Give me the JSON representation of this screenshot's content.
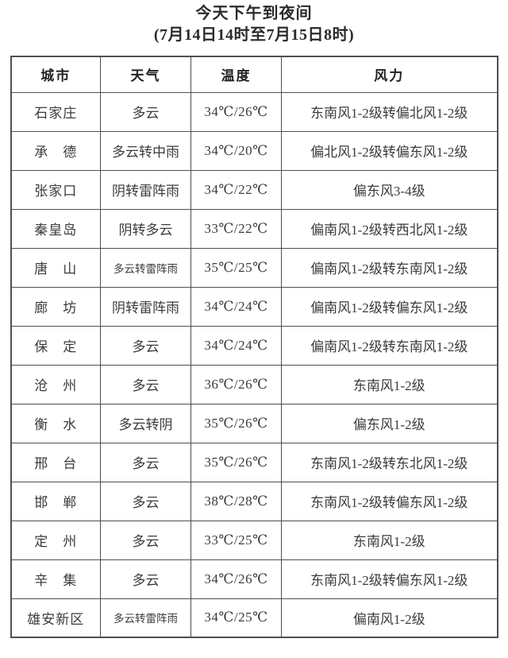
{
  "colors": {
    "background": "#ffffff",
    "text": "#3b3b40",
    "title": "#2b2b2b",
    "temperature": "#b5352c",
    "border": "#4f4f4f"
  },
  "chart_data": {
    "type": "table",
    "title": "今天下午到夜间",
    "subtitle": "(7月14日14时至7月15日8时)",
    "columns": [
      "城市",
      "天气",
      "温度",
      "风力"
    ],
    "rows": [
      [
        "石家庄",
        "多云",
        "34℃/26℃",
        "东南风1-2级转偏北风1-2级"
      ],
      [
        "承　德",
        "多云转中雨",
        "34℃/20℃",
        "偏北风1-2级转偏东风1-2级"
      ],
      [
        "张家口",
        "阴转雷阵雨",
        "34℃/22℃",
        "偏东风3-4级"
      ],
      [
        "秦皇岛",
        "阴转多云",
        "33℃/22℃",
        "偏南风1-2级转西北风1-2级"
      ],
      [
        "唐　山",
        "多云转雷阵雨",
        "35℃/25℃",
        "偏南风1-2级转东南风1-2级"
      ],
      [
        "廊　坊",
        "阴转雷阵雨",
        "34℃/24℃",
        "偏南风1-2级转偏东风1-2级"
      ],
      [
        "保　定",
        "多云",
        "34℃/24℃",
        "偏南风1-2级转东南风1-2级"
      ],
      [
        "沧　州",
        "多云",
        "36℃/26℃",
        "东南风1-2级"
      ],
      [
        "衡　水",
        "多云转阴",
        "35℃/26℃",
        "偏东风1-2级"
      ],
      [
        "邢　台",
        "多云",
        "35℃/26℃",
        "东南风1-2级转东北风1-2级"
      ],
      [
        "邯　郸",
        "多云",
        "38℃/28℃",
        "东南风1-2级转偏东风1-2级"
      ],
      [
        "定　州",
        "多云",
        "33℃/25℃",
        "东南风1-2级"
      ],
      [
        "辛　集",
        "多云",
        "34℃/26℃",
        "东南风1-2级转偏东风1-2级"
      ],
      [
        "雄安新区",
        "多云转雷阵雨",
        "34℃/25℃",
        "偏南风1-2级"
      ]
    ]
  }
}
